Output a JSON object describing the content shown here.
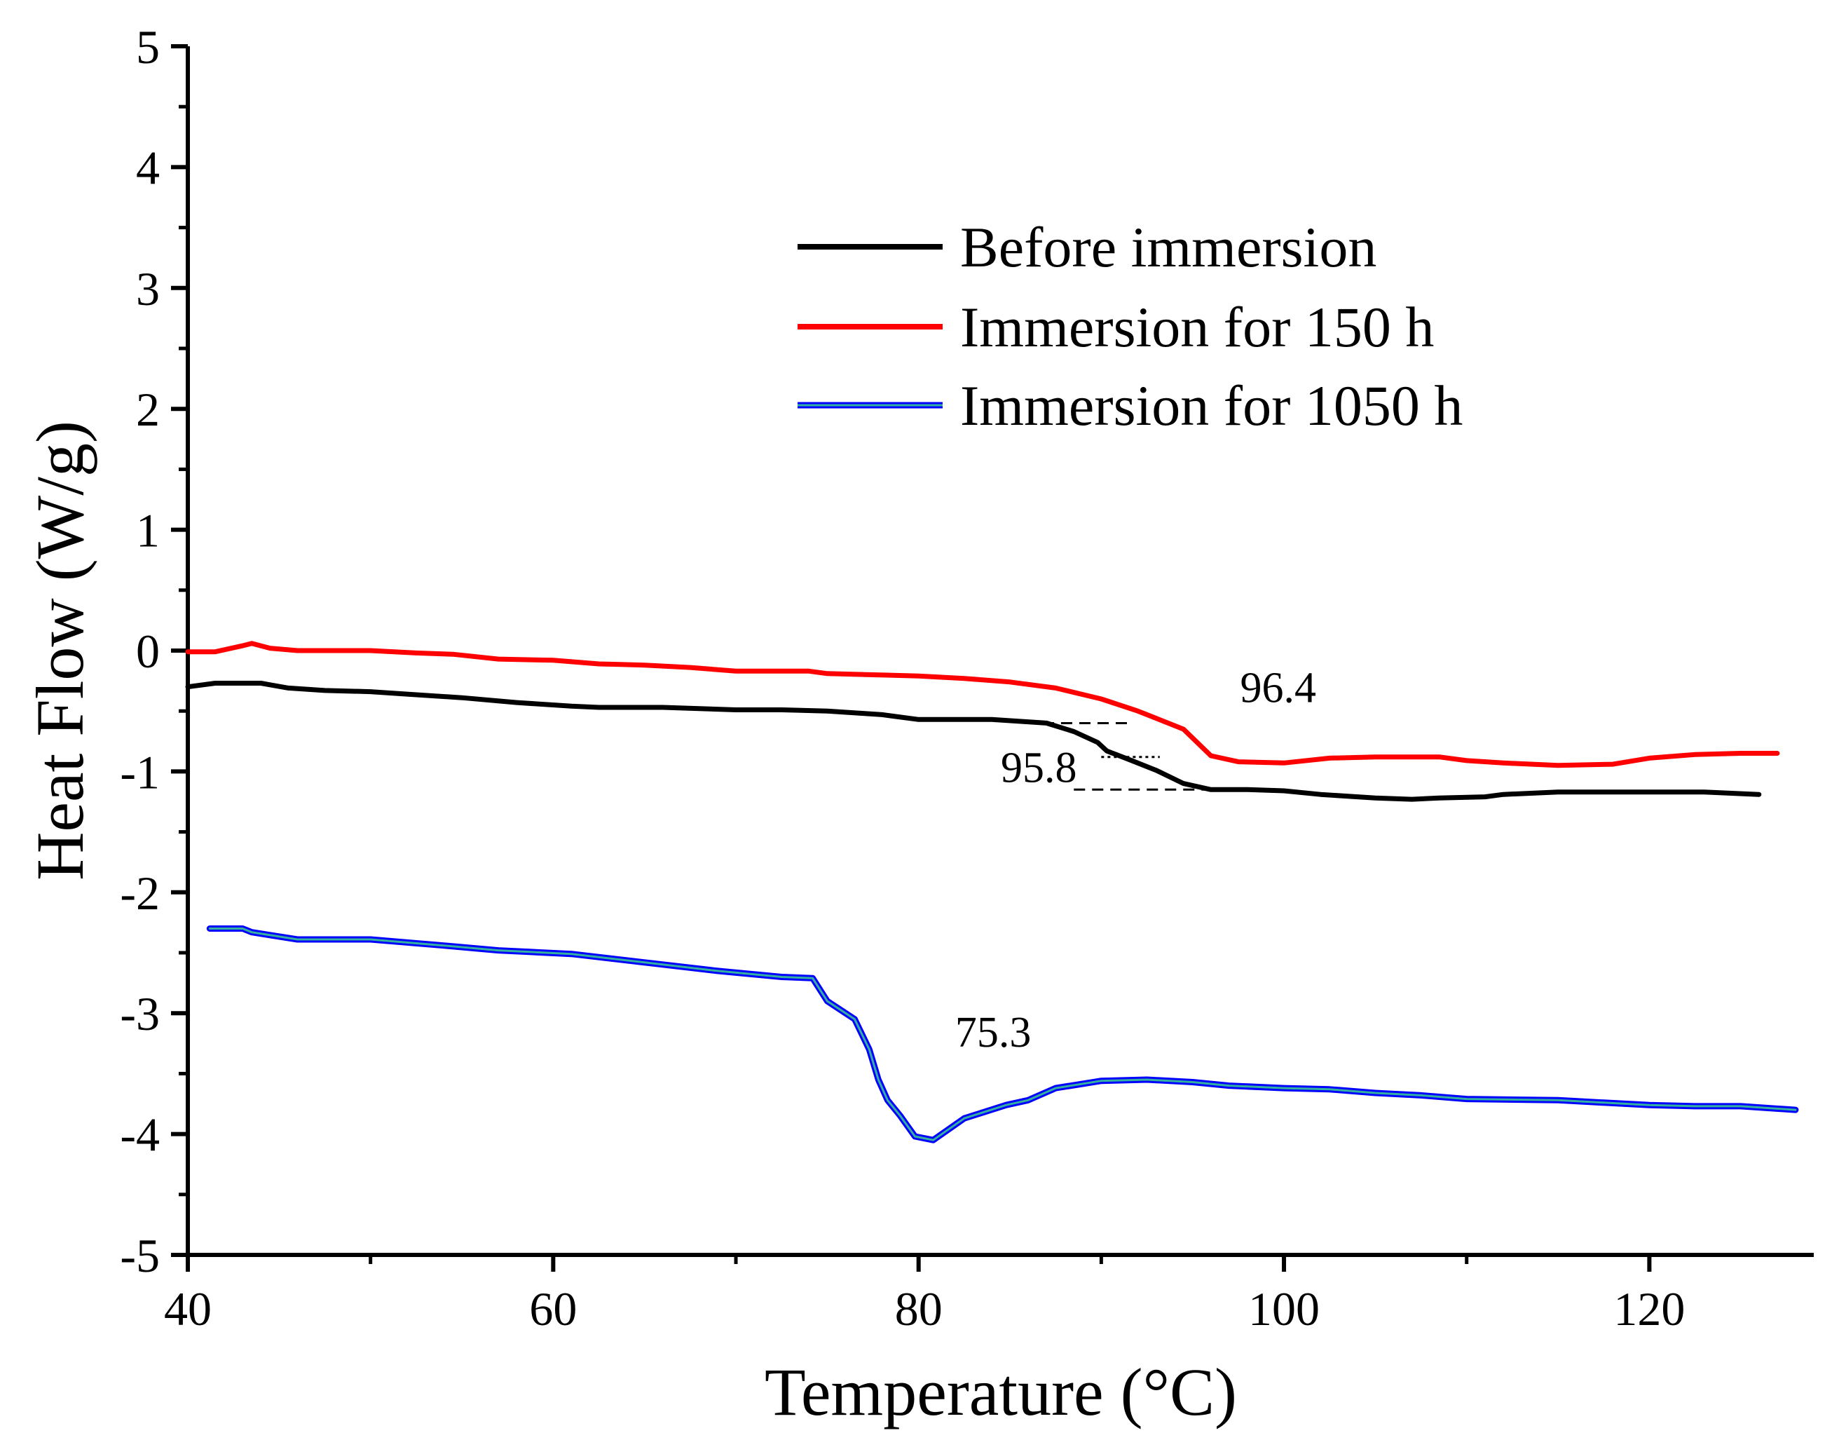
{
  "chart_data": {
    "type": "line",
    "title": "",
    "xlabel": "Temperature (°C)",
    "ylabel": "Heat Flow (W/g)",
    "xlim": [
      40,
      129
    ],
    "ylim": [
      -5,
      5
    ],
    "x_ticks": [
      40,
      60,
      80,
      100,
      120
    ],
    "y_ticks": [
      5,
      4,
      3,
      2,
      1,
      0,
      -1,
      -2,
      -3,
      -4,
      -5
    ],
    "x_tick_labels": [
      "40",
      "60",
      "80",
      "100",
      "120"
    ],
    "y_tick_labels": [
      "5",
      "4",
      "3",
      "2",
      "1",
      "0",
      "-1",
      "-2",
      "-3",
      "-4",
      "-5"
    ],
    "legend_position": "top-right",
    "series": [
      {
        "name": "Before immersion",
        "color": "#000000",
        "x": [
          40,
          41.5,
          44,
          45.5,
          47.5,
          50,
          52,
          55,
          58,
          61,
          62.5,
          64,
          66,
          68,
          70,
          72.5,
          75,
          78,
          80,
          84,
          87,
          88.5,
          89.8,
          90.3,
          91.5,
          93,
          94.5,
          96,
          98,
          100,
          102,
          105,
          107,
          108.5,
          111,
          112,
          115,
          117.5,
          120,
          123,
          126
        ],
        "y": [
          -0.3,
          -0.27,
          -0.27,
          -0.31,
          -0.33,
          -0.34,
          -0.36,
          -0.39,
          -0.43,
          -0.46,
          -0.47,
          -0.47,
          -0.47,
          -0.48,
          -0.49,
          -0.49,
          -0.5,
          -0.53,
          -0.57,
          -0.57,
          -0.6,
          -0.67,
          -0.76,
          -0.83,
          -0.9,
          -0.99,
          -1.1,
          -1.15,
          -1.15,
          -1.16,
          -1.19,
          -1.22,
          -1.23,
          -1.22,
          -1.21,
          -1.19,
          -1.17,
          -1.17,
          -1.17,
          -1.17,
          -1.19
        ]
      },
      {
        "name": "Immersion for 150 h",
        "color": "#ff0000",
        "x": [
          40,
          41.5,
          43,
          43.5,
          44.5,
          46,
          50,
          52.5,
          54.5,
          57,
          60,
          62.5,
          65,
          67.5,
          70,
          74,
          75,
          77.5,
          80,
          82.5,
          85,
          87.5,
          90,
          92,
          94.5,
          96,
          97.5,
          100,
          102.5,
          105,
          107.5,
          108.5,
          110,
          112,
          115,
          118,
          120,
          122.5,
          125,
          127
        ],
        "y": [
          -0.01,
          -0.01,
          0.04,
          0.06,
          0.02,
          0,
          0,
          -0.02,
          -0.03,
          -0.07,
          -0.08,
          -0.11,
          -0.12,
          -0.14,
          -0.17,
          -0.17,
          -0.19,
          -0.2,
          -0.21,
          -0.23,
          -0.26,
          -0.31,
          -0.4,
          -0.5,
          -0.65,
          -0.87,
          -0.92,
          -0.93,
          -0.89,
          -0.88,
          -0.88,
          -0.88,
          -0.91,
          -0.93,
          -0.95,
          -0.94,
          -0.89,
          -0.86,
          -0.85,
          -0.85
        ]
      },
      {
        "name": "Immersion for 1050 h",
        "color": "#0000ff",
        "x": [
          41.2,
          43,
          43.5,
          46,
          50,
          54,
          57,
          61,
          65,
          69,
          72.5,
          74.2,
          75,
          76.5,
          77.3,
          77.8,
          78.3,
          79,
          79.8,
          80.8,
          82.5,
          84.8,
          86,
          87.5,
          90,
          92.5,
          95,
          97,
          100,
          102.5,
          105,
          107.5,
          110,
          115,
          117.5,
          120,
          122.5,
          125,
          128
        ],
        "y": [
          -2.3,
          -2.3,
          -2.33,
          -2.39,
          -2.39,
          -2.44,
          -2.48,
          -2.51,
          -2.58,
          -2.65,
          -2.7,
          -2.71,
          -2.9,
          -3.05,
          -3.3,
          -3.55,
          -3.72,
          -3.85,
          -4.02,
          -4.05,
          -3.87,
          -3.76,
          -3.72,
          -3.62,
          -3.56,
          -3.55,
          -3.57,
          -3.6,
          -3.62,
          -3.63,
          -3.66,
          -3.68,
          -3.71,
          -3.72,
          -3.74,
          -3.76,
          -3.77,
          -3.77,
          -3.8
        ]
      }
    ],
    "annotations": [
      {
        "text": "96.4",
        "x": 97.6,
        "y": -0.3
      },
      {
        "text": "95.8",
        "x": 84.5,
        "y": -0.96
      },
      {
        "text": "75.3",
        "x": 82,
        "y": -3.15
      }
    ],
    "reference_lines": [
      {
        "style": "dashed",
        "x": [
          86.8,
          91.5
        ],
        "y": [
          -0.6,
          -0.6
        ]
      },
      {
        "style": "dotted",
        "x": [
          90,
          93.2
        ],
        "y": [
          -0.88,
          -0.88
        ]
      },
      {
        "style": "dashed",
        "x": [
          88.5,
          96.5
        ],
        "y": [
          -1.15,
          -1.15
        ]
      }
    ]
  }
}
